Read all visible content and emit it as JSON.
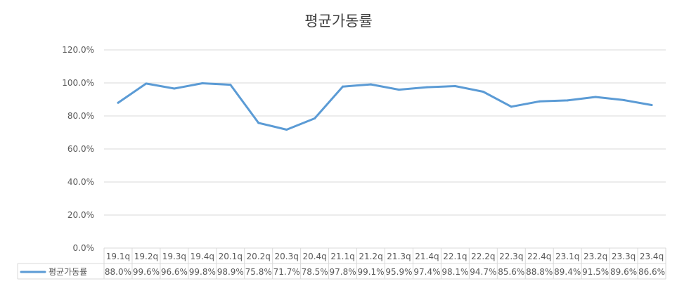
{
  "chart_data": {
    "type": "line",
    "title": "평균가동률",
    "categories": [
      "19.1q",
      "19.2q",
      "19.3q",
      "19.4q",
      "20.1q",
      "20.2q",
      "20.3q",
      "20.4q",
      "21.1q",
      "21.2q",
      "21.3q",
      "21.4q",
      "22.1q",
      "22.2q",
      "22.3q",
      "22.4q",
      "23.1q",
      "23.2q",
      "23.3q",
      "23.4q"
    ],
    "series": [
      {
        "name": "평균가동률",
        "values": [
          88.0,
          99.6,
          96.6,
          99.8,
          98.9,
          75.8,
          71.7,
          78.5,
          97.8,
          99.1,
          95.9,
          97.4,
          98.1,
          94.7,
          85.6,
          88.8,
          89.4,
          91.5,
          89.6,
          86.6
        ],
        "labels": [
          "88.0%",
          "99.6%",
          "96.6%",
          "99.8%",
          "98.9%",
          "75.8%",
          "71.7%",
          "78.5%",
          "97.8%",
          "99.1%",
          "95.9%",
          "97.4%",
          "98.1%",
          "94.7%",
          "85.6%",
          "88.8%",
          "89.4%",
          "91.5%",
          "89.6%",
          "86.6%"
        ],
        "color": "#5B9BD5"
      }
    ],
    "ylim": [
      0,
      120
    ],
    "yticks": [
      "0.0%",
      "20.0%",
      "40.0%",
      "60.0%",
      "80.0%",
      "100.0%",
      "120.0%"
    ],
    "grid": true,
    "legend": "data-table"
  }
}
